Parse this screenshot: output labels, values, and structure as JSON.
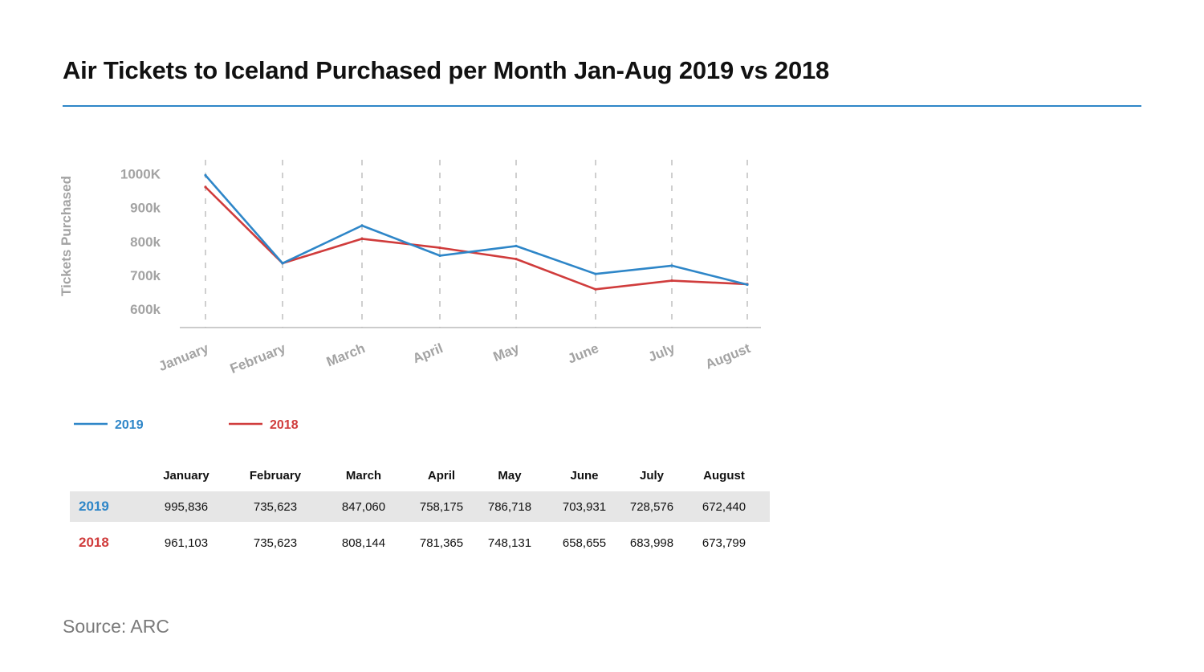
{
  "title": "Air Tickets to Iceland Purchased per Month Jan-Aug 2019 vs 2018",
  "source": "Source: ARC",
  "colors": {
    "accent": "#2e86c8",
    "series_2019": "#2e86c8",
    "series_2018": "#d03c3c",
    "axis_text": "#a3a3a3"
  },
  "chart_data": {
    "type": "line",
    "title": "Air Tickets to Iceland Purchased per Month Jan-Aug 2019 vs 2018",
    "xlabel": "",
    "ylabel": "Tickets Purchased",
    "categories": [
      "January",
      "February",
      "March",
      "April",
      "May",
      "June",
      "July",
      "August"
    ],
    "yticks": [
      {
        "value": 600000,
        "label": "600k"
      },
      {
        "value": 700000,
        "label": "700k"
      },
      {
        "value": 800000,
        "label": "800k"
      },
      {
        "value": 900000,
        "label": "900k"
      },
      {
        "value": 1000000,
        "label": "1000K"
      }
    ],
    "grid": "vertical dashed",
    "legend_position": "bottom-left",
    "series": [
      {
        "name": "2019",
        "color": "#2e86c8",
        "values": [
          995836,
          735623,
          847060,
          758175,
          786718,
          703931,
          728576,
          672440
        ]
      },
      {
        "name": "2018",
        "color": "#d03c3c",
        "values": [
          961103,
          735623,
          808144,
          781365,
          748131,
          658655,
          683998,
          673799
        ]
      }
    ]
  },
  "table": {
    "headers": [
      "",
      "January",
      "February",
      "March",
      "April",
      "May",
      "June",
      "July",
      "August"
    ],
    "rows": [
      {
        "label": "2019",
        "color": "#2e86c8",
        "cells": [
          "995,836",
          "735,623",
          "847,060",
          "758,175",
          "786,718",
          "703,931",
          "728,576",
          "672,440"
        ]
      },
      {
        "label": "2018",
        "color": "#d03c3c",
        "cells": [
          "961,103",
          "735,623",
          "808,144",
          "781,365",
          "748,131",
          "658,655",
          "683,998",
          "673,799"
        ]
      }
    ]
  }
}
